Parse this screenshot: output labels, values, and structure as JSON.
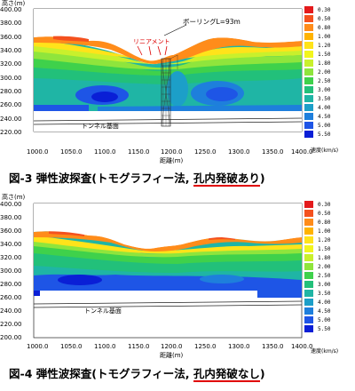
{
  "legend": {
    "values": [
      "0.30",
      "0.50",
      "0.80",
      "1.00",
      "1.20",
      "1.50",
      "1.80",
      "2.00",
      "2.50",
      "3.00",
      "3.50",
      "4.00",
      "4.50",
      "5.00",
      "5.50"
    ],
    "colors": [
      "#e41a1c",
      "#f4511e",
      "#ff8c1a",
      "#ffb300",
      "#ffe31a",
      "#f2f51d",
      "#c9f02c",
      "#8fe53c",
      "#3fd14b",
      "#22c07a",
      "#1fb5a5",
      "#1c9fc8",
      "#1e7fdc",
      "#1e55e6",
      "#0a1fd6"
    ],
    "unit": "速度(km/s)"
  },
  "figure3": {
    "ylabel": "高さ(m)",
    "xlabel": "距離(m)",
    "yticks": [
      "400.00",
      "380.00",
      "360.00",
      "340.00",
      "320.00",
      "300.00",
      "280.00",
      "260.00",
      "240.00",
      "220.00"
    ],
    "xticks": [
      "1000.0",
      "1050.0",
      "1100.0",
      "1150.0",
      "1200.0",
      "1250.0",
      "1300.0",
      "1350.0",
      "1400.0"
    ],
    "annotation_boring": "ボーリングL=93m",
    "annotation_lineament": "リニアメント",
    "annotation_tunnel": "トンネル基面",
    "caption_prefix": "図-3  弾性波探査(トモグラフィー法, ",
    "caption_highlight": "孔内発破あり",
    "caption_suffix": ")"
  },
  "figure4": {
    "ylabel": "高さ(m)",
    "xlabel": "距離(m)",
    "yticks": [
      "400.00",
      "380.00",
      "360.00",
      "340.00",
      "320.00",
      "300.00",
      "280.00",
      "260.00",
      "240.00",
      "220.00",
      "200.00"
    ],
    "xticks": [
      "1000.0",
      "1050.0",
      "1100.0",
      "1150.0",
      "1200.0",
      "1250.0",
      "1300.0",
      "1350.0",
      "1400.0"
    ],
    "annotation_tunnel": "トンネル基面",
    "caption_prefix": "図-4  弾性波探査(トモグラフィー法, ",
    "caption_highlight": "孔内発破なし",
    "caption_suffix": ")"
  }
}
